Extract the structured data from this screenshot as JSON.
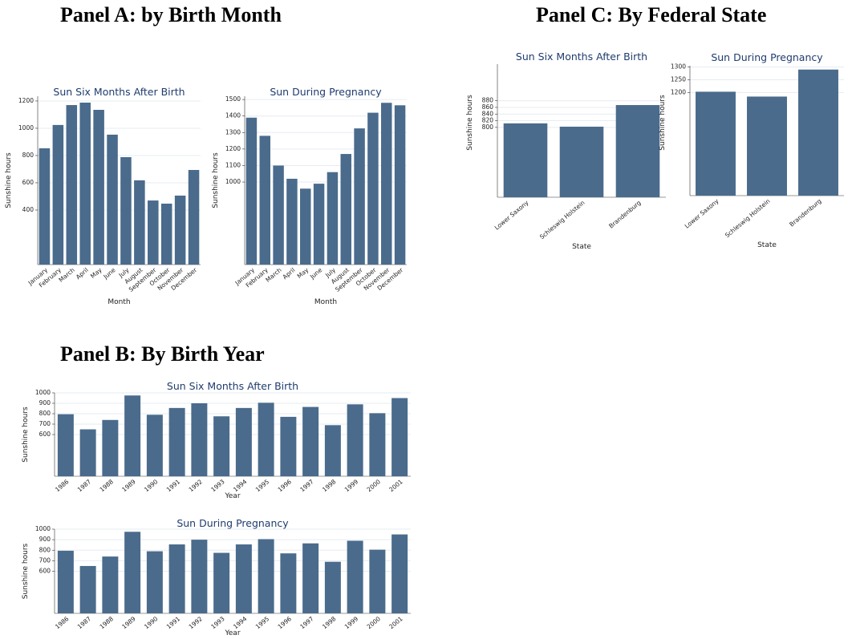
{
  "headings": [
    "Panel A: by Birth Month",
    "Panel C: By Federal State",
    "Panel B: By Birth Year"
  ],
  "chart_data": [
    {
      "type": "bar",
      "title": "Sun Six Months After Birth",
      "x_label": "Month",
      "y_label": "Sunshine hours",
      "categories": [
        "January",
        "February",
        "March",
        "April",
        "May",
        "June",
        "July",
        "August",
        "September",
        "October",
        "November",
        "December"
      ],
      "values": [
        853,
        1024,
        1170,
        1188,
        1135,
        953,
        788,
        618,
        470,
        447,
        506,
        694
      ],
      "color": "#4a6b8c",
      "ylim": [
        0,
        1235
      ],
      "yticks": [
        400,
        600,
        800,
        1000,
        1200
      ],
      "grid": true
    },
    {
      "type": "bar",
      "title": "Sun During Pregnancy",
      "x_label": "Month",
      "y_label": "Sunshine hours",
      "categories": [
        "January",
        "February",
        "March",
        "April",
        "May",
        "June",
        "July",
        "August",
        "September",
        "October",
        "November",
        "December"
      ],
      "values": [
        1390,
        1280,
        1100,
        1020,
        960,
        990,
        1060,
        1170,
        1325,
        1420,
        1480,
        1465
      ],
      "color": "#4a6b8c",
      "ylim": [
        500,
        1520
      ],
      "yticks": [
        1000,
        1100,
        1200,
        1300,
        1400,
        1500
      ],
      "grid": true
    },
    {
      "type": "bar",
      "title": "Sun Six Months After Birth",
      "x_label": "Year",
      "y_label": "Sunshine hours",
      "categories": [
        "1986",
        "1987",
        "1988",
        "1989",
        "1990",
        "1991",
        "1992",
        "1993",
        "1994",
        "1995",
        "1996",
        "1997",
        "1998",
        "1999",
        "2000",
        "2001"
      ],
      "values": [
        795,
        650,
        740,
        975,
        790,
        855,
        900,
        775,
        855,
        905,
        770,
        865,
        690,
        890,
        805,
        950
      ],
      "color": "#4a6b8c",
      "ylim": [
        200,
        1000
      ],
      "yticks": [
        600,
        700,
        800,
        900,
        1000
      ],
      "grid": true
    },
    {
      "type": "bar",
      "title": "Sun During Pregnancy",
      "x_label": "Year",
      "y_label": "Sunshine hours",
      "categories": [
        "1986",
        "1987",
        "1988",
        "1989",
        "1990",
        "1991",
        "1992",
        "1993",
        "1994",
        "1995",
        "1996",
        "1997",
        "1998",
        "1999",
        "2000",
        "2001"
      ],
      "values": [
        795,
        650,
        740,
        975,
        790,
        855,
        900,
        775,
        855,
        905,
        770,
        865,
        690,
        890,
        805,
        950
      ],
      "color": "#4a6b8c",
      "ylim": [
        200,
        1000
      ],
      "yticks": [
        600,
        700,
        800,
        900,
        1000
      ],
      "grid": true
    },
    {
      "type": "bar",
      "title": "Sun Six Months After Birth",
      "x_label": "State",
      "y_label": "Sunshine hours",
      "categories": [
        "Lower Saxony",
        "Schleswig Holstein",
        "Brandenburg"
      ],
      "values": [
        812,
        802,
        867
      ],
      "color": "#4a6b8c",
      "ylim": [
        590,
        990
      ],
      "yticks": [
        800,
        820,
        840,
        860,
        880
      ],
      "grid": true
    },
    {
      "type": "bar",
      "title": "Sun During Pregnancy",
      "x_label": "State",
      "y_label": "Sunshine hours",
      "categories": [
        "Lower Saxony",
        "Schleswig Holstein",
        "Brandenburg"
      ],
      "values": [
        1203,
        1184,
        1290
      ],
      "color": "#4a6b8c",
      "ylim": [
        795,
        1305
      ],
      "yticks": [
        1200,
        1250,
        1300
      ],
      "grid": true
    }
  ]
}
